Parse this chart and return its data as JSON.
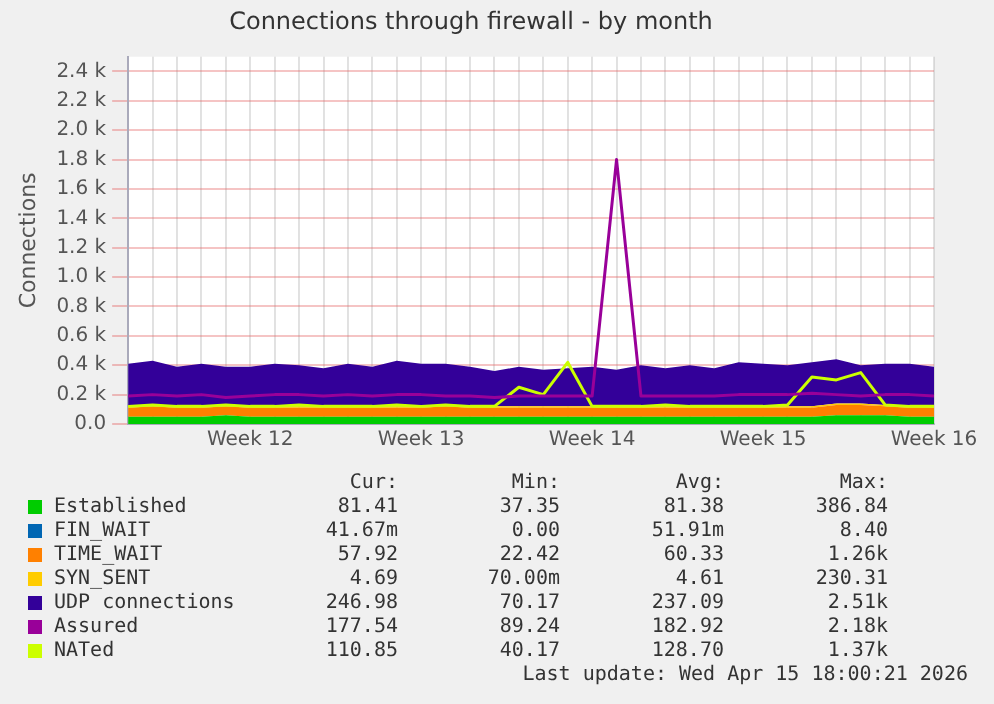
{
  "chart_data": {
    "type": "area",
    "title": "Connections through firewall - by month",
    "ylabel": "Connections",
    "stacked": true,
    "legend": "bottom",
    "grid": true,
    "categories": [
      null,
      null,
      null,
      null,
      null,
      "Week 12",
      null,
      null,
      null,
      null,
      null,
      null,
      "Week 13",
      null,
      null,
      null,
      null,
      null,
      null,
      "Week 14",
      null,
      null,
      null,
      null,
      null,
      null,
      "Week 15",
      null,
      null,
      null,
      null,
      null,
      null,
      "Week 16"
    ],
    "ylim": [
      0,
      2500
    ],
    "yticks": [
      {
        "value": 0,
        "label": "0.0"
      },
      {
        "value": 200,
        "label": "0.2 k"
      },
      {
        "value": 400,
        "label": "0.4 k"
      },
      {
        "value": 600,
        "label": "0.6 k"
      },
      {
        "value": 800,
        "label": "0.8 k"
      },
      {
        "value": 1000,
        "label": "1.0 k"
      },
      {
        "value": 1200,
        "label": "1.2 k"
      },
      {
        "value": 1400,
        "label": "1.4 k"
      },
      {
        "value": 1600,
        "label": "1.6 k"
      },
      {
        "value": 1800,
        "label": "1.8 k"
      },
      {
        "value": 2000,
        "label": "2.0 k"
      },
      {
        "value": 2200,
        "label": "2.2 k"
      },
      {
        "value": 2400,
        "label": "2.4 k"
      }
    ],
    "series": [
      {
        "name": "Established",
        "color": "#00cc00",
        "values": [
          50,
          50,
          50,
          50,
          60,
          50,
          50,
          50,
          50,
          50,
          50,
          50,
          50,
          50,
          50,
          50,
          50,
          50,
          50,
          50,
          50,
          50,
          50,
          50,
          50,
          50,
          50,
          50,
          50,
          60,
          60,
          60,
          50,
          50
        ]
      },
      {
        "name": "FIN_WAIT",
        "color": "#0066b3",
        "values": [
          null,
          null,
          null,
          null,
          null,
          null,
          null,
          null,
          null,
          null,
          null,
          null,
          null,
          null,
          null,
          null,
          null,
          null,
          null,
          null,
          null,
          null,
          null,
          null,
          null,
          null,
          null,
          null,
          null,
          null,
          null,
          null,
          null,
          null
        ]
      },
      {
        "name": "TIME_WAIT",
        "color": "#ff8000",
        "values": [
          60,
          70,
          60,
          60,
          60,
          60,
          60,
          60,
          60,
          60,
          60,
          60,
          60,
          70,
          60,
          60,
          60,
          60,
          60,
          60,
          60,
          60,
          60,
          60,
          60,
          60,
          60,
          60,
          60,
          70,
          70,
          60,
          60,
          60
        ]
      },
      {
        "name": "SYN_SENT",
        "color": "#ffcc00",
        "values": [
          10,
          10,
          10,
          10,
          10,
          10,
          10,
          10,
          10,
          10,
          10,
          10,
          10,
          10,
          10,
          10,
          10,
          10,
          10,
          10,
          10,
          10,
          10,
          10,
          10,
          10,
          10,
          10,
          10,
          10,
          10,
          10,
          10,
          10
        ]
      },
      {
        "name": "UDP connections",
        "color": "#330099",
        "values": [
          290,
          300,
          270,
          290,
          260,
          270,
          290,
          280,
          260,
          290,
          270,
          310,
          290,
          280,
          270,
          240,
          270,
          250,
          260,
          270,
          250,
          280,
          260,
          280,
          260,
          300,
          290,
          280,
          300,
          300,
          260,
          280,
          290,
          270
        ]
      },
      {
        "name": "Assured",
        "type": "line",
        "color": "#990099",
        "values": [
          190,
          200,
          190,
          200,
          180,
          190,
          200,
          200,
          190,
          200,
          190,
          200,
          200,
          190,
          190,
          180,
          190,
          190,
          190,
          190,
          1800,
          190,
          190,
          190,
          190,
          200,
          200,
          200,
          210,
          200,
          190,
          200,
          200,
          190
        ]
      },
      {
        "name": "NATed",
        "type": "line",
        "color": "#ccff00",
        "values": [
          120,
          130,
          120,
          120,
          130,
          120,
          120,
          130,
          120,
          120,
          120,
          130,
          120,
          130,
          120,
          120,
          250,
          200,
          420,
          120,
          120,
          120,
          130,
          120,
          120,
          120,
          120,
          130,
          320,
          300,
          350,
          130,
          120,
          120
        ]
      }
    ],
    "annotations": [
      "Cur:",
      "Min:",
      "Avg:",
      "Max:",
      "81.41",
      "37.35",
      "81.38",
      "386.84",
      "41.67m",
      "0.00",
      "51.91m",
      "8.40",
      "57.92",
      "22.42",
      "60.33",
      "1.26k",
      "4.69",
      "70.00m",
      "4.61",
      "230.31",
      "246.98",
      "70.17",
      "237.09",
      "2.51k",
      "177.54",
      "89.24",
      "182.92",
      "2.18k",
      "110.85",
      "40.17",
      "128.70",
      "1.37k",
      "Last update: Wed Apr 15 18:00:21 2026"
    ]
  }
}
